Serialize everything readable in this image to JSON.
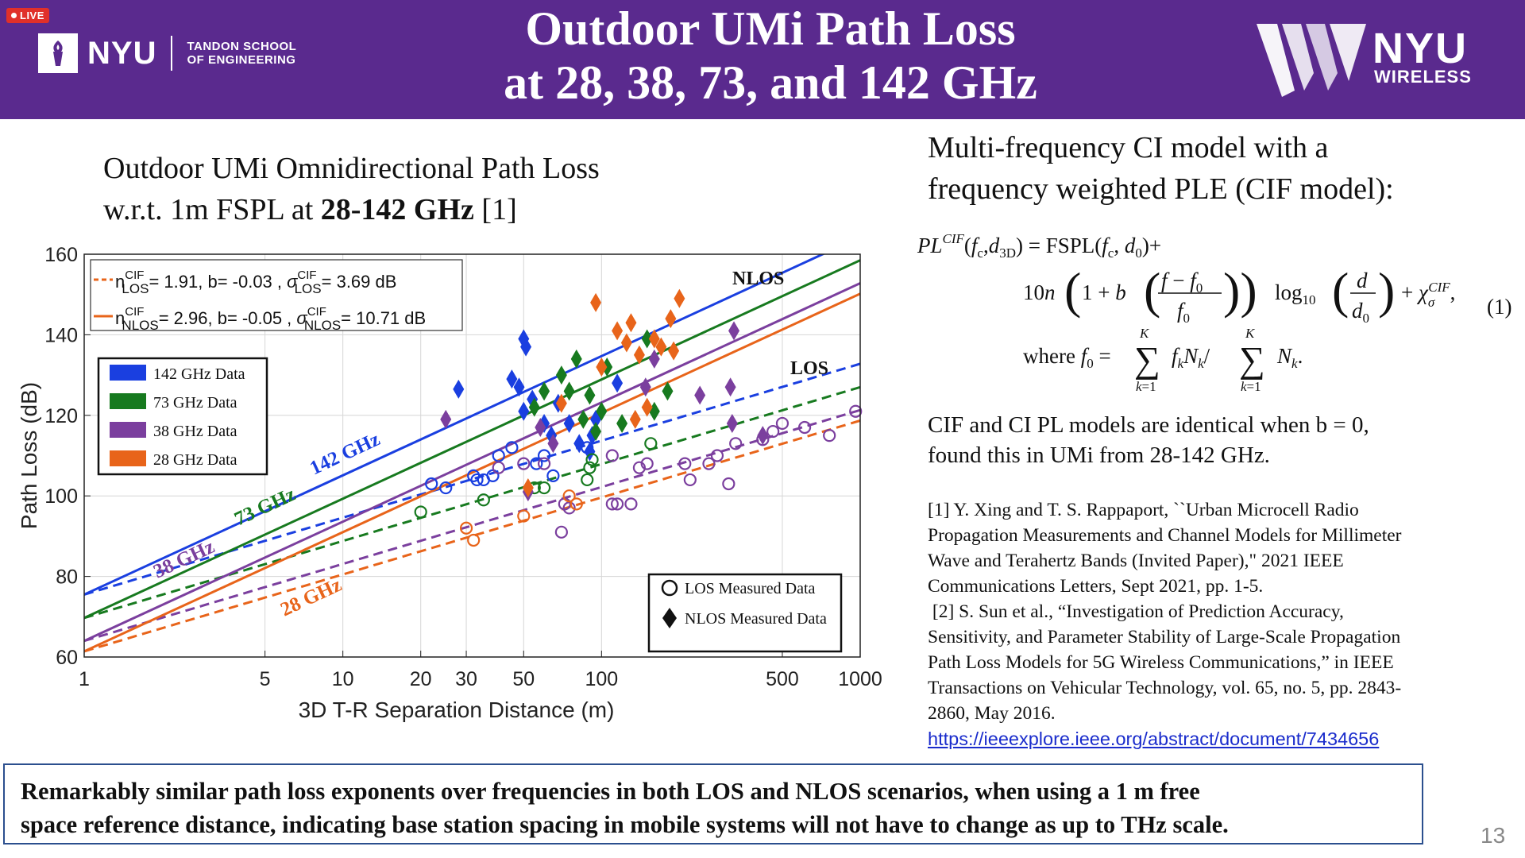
{
  "header": {
    "live_badge": "LIVE",
    "logo_left_name": "NYU",
    "logo_left_school_line1": "TANDON SCHOOL",
    "logo_left_school_line2": "OF ENGINEERING",
    "title_line1": "Outdoor UMi Path Loss",
    "title_line2": "at 28, 38, 73, and 142 GHz",
    "logo_right_name": "NYU",
    "logo_right_sub": "WIRELESS",
    "background_color": "#5a2a8e"
  },
  "left": {
    "heading_line1": "Outdoor UMi Omnidirectional Path Loss",
    "heading_line2_prefix": "w.r.t. 1m FSPL at ",
    "heading_line2_bold": "28-142 GHz",
    "heading_line2_suffix": " [1]"
  },
  "chart_data": {
    "type": "scatter",
    "xlabel": "3D T-R Separation Distance (m)",
    "ylabel": "Path Loss (dB)",
    "xscale": "log",
    "xlim": [
      1,
      1000
    ],
    "ylim": [
      60,
      160
    ],
    "xticks": [
      1,
      5,
      10,
      20,
      30,
      50,
      100,
      500,
      1000
    ],
    "yticks": [
      60,
      80,
      100,
      120,
      140,
      160
    ],
    "grid": true,
    "model_legend": [
      {
        "prefix": "n",
        "sup": "CIF",
        "sub": "LOS",
        "text": "= 1.91, b= -0.03 , ",
        "sigma_sup": "CIF",
        "sigma_sub": "LOS",
        "sigma_text": "= 3.69 dB",
        "style": "dashed",
        "color": "#e8641a"
      },
      {
        "prefix": "n",
        "sup": "CIF",
        "sub": "NLOS",
        "text": "= 2.96, b= -0.05 , ",
        "sigma_sup": "CIF",
        "sigma_sub": "NLOS",
        "sigma_text": "= 10.71 dB",
        "style": "solid",
        "color": "#e8641a"
      }
    ],
    "frequency_legend": [
      {
        "label": "142 GHz Data",
        "color": "#1a3fe0"
      },
      {
        "label": "73 GHz Data",
        "color": "#177a1f"
      },
      {
        "label": "38 GHz Data",
        "color": "#7b3f9e"
      },
      {
        "label": "28 GHz Data",
        "color": "#e8641a"
      }
    ],
    "marker_legend": [
      {
        "label": "LOS Measured Data",
        "marker": "circle"
      },
      {
        "label": "NLOS Measured Data",
        "marker": "diamond"
      }
    ],
    "annotations": {
      "nlos": "NLOS",
      "los": "LOS",
      "f142": "142 GHz",
      "f73": "73 GHz",
      "f38": "38 GHz",
      "f28": "28 GHz"
    },
    "series": [
      {
        "name": "142 GHz",
        "color": "#1a3fe0",
        "fspl_1m": 75.5,
        "n_nlos": 2.96,
        "n_los": 1.91
      },
      {
        "name": "73 GHz",
        "color": "#177a1f",
        "fspl_1m": 69.7,
        "n_nlos": 2.96,
        "n_los": 1.91
      },
      {
        "name": "38 GHz",
        "color": "#7b3f9e",
        "fspl_1m": 64.0,
        "n_nlos": 2.96,
        "n_los": 1.91
      },
      {
        "name": "28 GHz",
        "color": "#e8641a",
        "fspl_1m": 61.4,
        "n_nlos": 2.96,
        "n_los": 1.91
      }
    ],
    "points": [
      {
        "f": 142,
        "t": "NLOS",
        "d": 28,
        "pl": 126.5
      },
      {
        "f": 142,
        "t": "NLOS",
        "d": 50,
        "pl": 139
      },
      {
        "f": 142,
        "t": "NLOS",
        "d": 51,
        "pl": 137
      },
      {
        "f": 142,
        "t": "NLOS",
        "d": 45,
        "pl": 129
      },
      {
        "f": 142,
        "t": "NLOS",
        "d": 48,
        "pl": 127
      },
      {
        "f": 142,
        "t": "NLOS",
        "d": 54,
        "pl": 124
      },
      {
        "f": 142,
        "t": "NLOS",
        "d": 60,
        "pl": 118
      },
      {
        "f": 142,
        "t": "NLOS",
        "d": 50,
        "pl": 121
      },
      {
        "f": 142,
        "t": "NLOS",
        "d": 64,
        "pl": 115
      },
      {
        "f": 142,
        "t": "NLOS",
        "d": 68,
        "pl": 123
      },
      {
        "f": 142,
        "t": "NLOS",
        "d": 75,
        "pl": 118
      },
      {
        "f": 142,
        "t": "NLOS",
        "d": 82,
        "pl": 113
      },
      {
        "f": 142,
        "t": "NLOS",
        "d": 90,
        "pl": 111
      },
      {
        "f": 142,
        "t": "NLOS",
        "d": 92,
        "pl": 115
      },
      {
        "f": 142,
        "t": "NLOS",
        "d": 115,
        "pl": 128
      },
      {
        "f": 142,
        "t": "NLOS",
        "d": 95,
        "pl": 119
      },
      {
        "f": 142,
        "t": "LOS",
        "d": 22,
        "pl": 103
      },
      {
        "f": 142,
        "t": "LOS",
        "d": 25,
        "pl": 102
      },
      {
        "f": 142,
        "t": "LOS",
        "d": 32,
        "pl": 105
      },
      {
        "f": 142,
        "t": "LOS",
        "d": 33,
        "pl": 104
      },
      {
        "f": 142,
        "t": "LOS",
        "d": 35,
        "pl": 104
      },
      {
        "f": 142,
        "t": "LOS",
        "d": 38,
        "pl": 105
      },
      {
        "f": 142,
        "t": "LOS",
        "d": 40,
        "pl": 110
      },
      {
        "f": 142,
        "t": "LOS",
        "d": 45,
        "pl": 112
      },
      {
        "f": 142,
        "t": "LOS",
        "d": 56,
        "pl": 108
      },
      {
        "f": 142,
        "t": "LOS",
        "d": 60,
        "pl": 110
      },
      {
        "f": 142,
        "t": "LOS",
        "d": 88,
        "pl": 112
      },
      {
        "f": 142,
        "t": "LOS",
        "d": 65,
        "pl": 105
      },
      {
        "f": 73,
        "t": "NLOS",
        "d": 55,
        "pl": 122
      },
      {
        "f": 73,
        "t": "NLOS",
        "d": 60,
        "pl": 126
      },
      {
        "f": 73,
        "t": "NLOS",
        "d": 70,
        "pl": 130
      },
      {
        "f": 73,
        "t": "NLOS",
        "d": 75,
        "pl": 126
      },
      {
        "f": 73,
        "t": "NLOS",
        "d": 80,
        "pl": 134
      },
      {
        "f": 73,
        "t": "NLOS",
        "d": 90,
        "pl": 125
      },
      {
        "f": 73,
        "t": "NLOS",
        "d": 95,
        "pl": 116
      },
      {
        "f": 73,
        "t": "NLOS",
        "d": 105,
        "pl": 132
      },
      {
        "f": 73,
        "t": "NLOS",
        "d": 120,
        "pl": 118
      },
      {
        "f": 73,
        "t": "NLOS",
        "d": 150,
        "pl": 139
      },
      {
        "f": 73,
        "t": "NLOS",
        "d": 160,
        "pl": 121
      },
      {
        "f": 73,
        "t": "NLOS",
        "d": 180,
        "pl": 126
      },
      {
        "f": 73,
        "t": "NLOS",
        "d": 85,
        "pl": 119
      },
      {
        "f": 73,
        "t": "NLOS",
        "d": 100,
        "pl": 121
      },
      {
        "f": 73,
        "t": "LOS",
        "d": 35,
        "pl": 99
      },
      {
        "f": 73,
        "t": "LOS",
        "d": 55,
        "pl": 102
      },
      {
        "f": 73,
        "t": "LOS",
        "d": 60,
        "pl": 102
      },
      {
        "f": 73,
        "t": "LOS",
        "d": 20,
        "pl": 96
      },
      {
        "f": 73,
        "t": "LOS",
        "d": 90,
        "pl": 107
      },
      {
        "f": 73,
        "t": "LOS",
        "d": 92,
        "pl": 109
      },
      {
        "f": 73,
        "t": "LOS",
        "d": 88,
        "pl": 104
      },
      {
        "f": 73,
        "t": "LOS",
        "d": 155,
        "pl": 113
      },
      {
        "f": 38,
        "t": "NLOS",
        "d": 25,
        "pl": 119
      },
      {
        "f": 38,
        "t": "NLOS",
        "d": 52,
        "pl": 101
      },
      {
        "f": 38,
        "t": "NLOS",
        "d": 58,
        "pl": 117
      },
      {
        "f": 38,
        "t": "NLOS",
        "d": 65,
        "pl": 113
      },
      {
        "f": 38,
        "t": "NLOS",
        "d": 148,
        "pl": 127
      },
      {
        "f": 38,
        "t": "NLOS",
        "d": 160,
        "pl": 134
      },
      {
        "f": 38,
        "t": "NLOS",
        "d": 240,
        "pl": 125
      },
      {
        "f": 38,
        "t": "NLOS",
        "d": 315,
        "pl": 127
      },
      {
        "f": 38,
        "t": "NLOS",
        "d": 325,
        "pl": 141
      },
      {
        "f": 38,
        "t": "NLOS",
        "d": 320,
        "pl": 118
      },
      {
        "f": 38,
        "t": "NLOS",
        "d": 420,
        "pl": 115
      },
      {
        "f": 38,
        "t": "LOS",
        "d": 40,
        "pl": 107
      },
      {
        "f": 38,
        "t": "LOS",
        "d": 50,
        "pl": 108
      },
      {
        "f": 38,
        "t": "LOS",
        "d": 60,
        "pl": 108
      },
      {
        "f": 38,
        "t": "LOS",
        "d": 70,
        "pl": 91
      },
      {
        "f": 38,
        "t": "LOS",
        "d": 72,
        "pl": 98
      },
      {
        "f": 38,
        "t": "LOS",
        "d": 75,
        "pl": 97
      },
      {
        "f": 38,
        "t": "LOS",
        "d": 110,
        "pl": 98
      },
      {
        "f": 38,
        "t": "LOS",
        "d": 115,
        "pl": 98
      },
      {
        "f": 38,
        "t": "LOS",
        "d": 110,
        "pl": 110
      },
      {
        "f": 38,
        "t": "LOS",
        "d": 130,
        "pl": 98
      },
      {
        "f": 38,
        "t": "LOS",
        "d": 140,
        "pl": 107
      },
      {
        "f": 38,
        "t": "LOS",
        "d": 150,
        "pl": 108
      },
      {
        "f": 38,
        "t": "LOS",
        "d": 210,
        "pl": 108
      },
      {
        "f": 38,
        "t": "LOS",
        "d": 220,
        "pl": 104
      },
      {
        "f": 38,
        "t": "LOS",
        "d": 260,
        "pl": 108
      },
      {
        "f": 38,
        "t": "LOS",
        "d": 280,
        "pl": 110
      },
      {
        "f": 38,
        "t": "LOS",
        "d": 310,
        "pl": 103
      },
      {
        "f": 38,
        "t": "LOS",
        "d": 330,
        "pl": 113
      },
      {
        "f": 38,
        "t": "LOS",
        "d": 420,
        "pl": 114
      },
      {
        "f": 38,
        "t": "LOS",
        "d": 460,
        "pl": 116
      },
      {
        "f": 38,
        "t": "LOS",
        "d": 500,
        "pl": 118
      },
      {
        "f": 38,
        "t": "LOS",
        "d": 610,
        "pl": 117
      },
      {
        "f": 38,
        "t": "LOS",
        "d": 760,
        "pl": 115
      },
      {
        "f": 38,
        "t": "LOS",
        "d": 960,
        "pl": 121
      },
      {
        "f": 28,
        "t": "NLOS",
        "d": 52,
        "pl": 102
      },
      {
        "f": 28,
        "t": "NLOS",
        "d": 70,
        "pl": 123
      },
      {
        "f": 28,
        "t": "NLOS",
        "d": 95,
        "pl": 148
      },
      {
        "f": 28,
        "t": "NLOS",
        "d": 100,
        "pl": 132
      },
      {
        "f": 28,
        "t": "NLOS",
        "d": 115,
        "pl": 141
      },
      {
        "f": 28,
        "t": "NLOS",
        "d": 125,
        "pl": 138
      },
      {
        "f": 28,
        "t": "NLOS",
        "d": 130,
        "pl": 143
      },
      {
        "f": 28,
        "t": "NLOS",
        "d": 140,
        "pl": 135
      },
      {
        "f": 28,
        "t": "NLOS",
        "d": 150,
        "pl": 122
      },
      {
        "f": 28,
        "t": "NLOS",
        "d": 160,
        "pl": 139
      },
      {
        "f": 28,
        "t": "NLOS",
        "d": 170,
        "pl": 137
      },
      {
        "f": 28,
        "t": "NLOS",
        "d": 185,
        "pl": 144
      },
      {
        "f": 28,
        "t": "NLOS",
        "d": 200,
        "pl": 149
      },
      {
        "f": 28,
        "t": "NLOS",
        "d": 190,
        "pl": 136
      },
      {
        "f": 28,
        "t": "NLOS",
        "d": 135,
        "pl": 119
      },
      {
        "f": 28,
        "t": "LOS",
        "d": 30,
        "pl": 92
      },
      {
        "f": 28,
        "t": "LOS",
        "d": 32,
        "pl": 89
      },
      {
        "f": 28,
        "t": "LOS",
        "d": 50,
        "pl": 95
      },
      {
        "f": 28,
        "t": "LOS",
        "d": 80,
        "pl": 98
      },
      {
        "f": 28,
        "t": "LOS",
        "d": 75,
        "pl": 100
      }
    ]
  },
  "right": {
    "heading_line1": "Multi-frequency CI model with a",
    "heading_line2": "frequency weighted PLE (CIF model):",
    "equation_number": "(1)",
    "note_line1": "CIF and CI PL models are identical when b = 0,",
    "note_line2": "found this in UMi from 28-142 GHz.",
    "refs": [
      "[1] Y. Xing and T. S. Rappaport, ``Urban Microcell Radio",
      "Propagation Measurements and Channel Models for Millimeter",
      "Wave and Terahertz Bands (Invited Paper),\" 2021 IEEE",
      "Communications Letters, Sept 2021, pp. 1-5.",
      " [2] S. Sun et al., “Investigation of Prediction Accuracy,",
      "Sensitivity, and Parameter Stability of Large-Scale Propagation",
      "Path Loss Models for 5G Wireless Communications,” in IEEE",
      "Transactions on Vehicular Technology, vol. 65, no. 5, pp. 2843-",
      "2860, May 2016."
    ],
    "link": "https://ieeexplore.ieee.org/abstract/document/7434656"
  },
  "bottom": {
    "line1": "Remarkably similar path loss exponents over frequencies in both LOS and NLOS scenarios, when using a 1 m free",
    "line2": "space reference distance, indicating base station spacing in mobile systems will not have to change as up to THz scale."
  },
  "page_number": "13"
}
